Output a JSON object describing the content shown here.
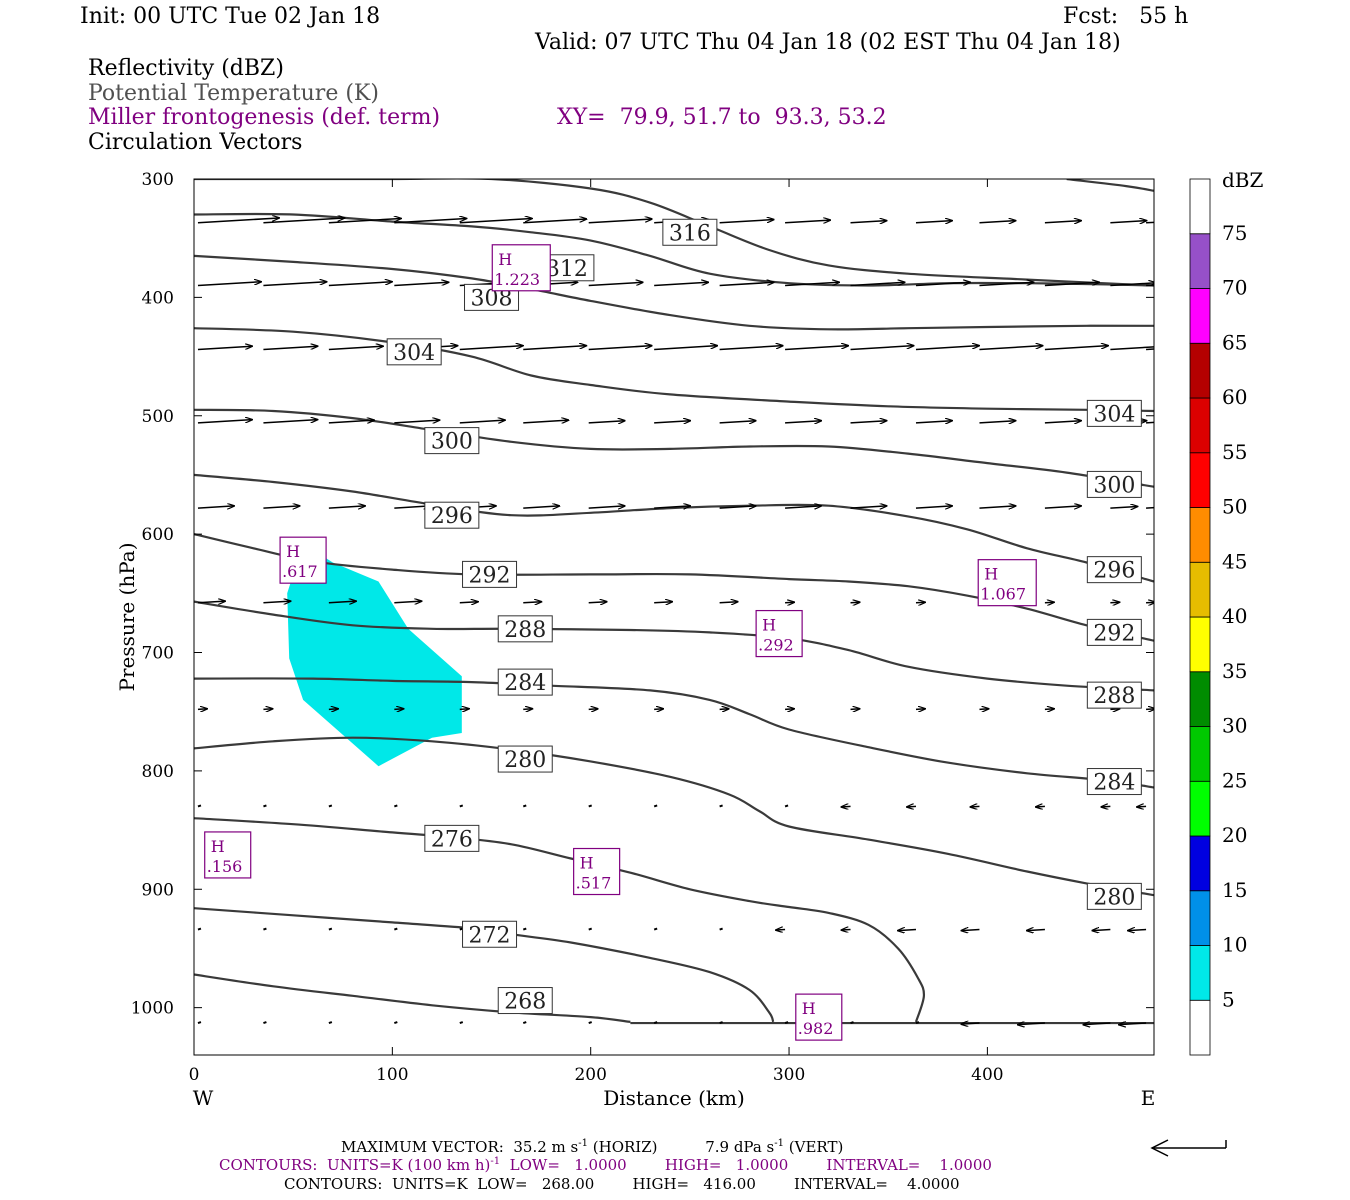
{
  "header": {
    "init": "Init: 00 UTC Tue 02 Jan 18",
    "fcst": "Fcst:   55 h",
    "valid": "Valid: 07 UTC Thu 04 Jan 18 (02 EST Thu 04 Jan 18)",
    "field1": "Reflectivity (dBZ)",
    "field2": "Potential Temperature (K)",
    "field3": "Miller frontogenesis (def. term)",
    "xy": "XY=  79.9, 51.7 to  93.3, 53.2",
    "field4": "Circulation Vectors"
  },
  "footer": {
    "max_vector_label": "MAXIMUM VECTOR:",
    "max_vector_horiz": "35.2 m s",
    "horiz_unit": "(HORIZ)",
    "max_vector_vert": "7.9 dPa s",
    "vert_unit": "(VERT)",
    "contours1": "CONTOURS:  UNITS=K (100 km h)",
    "contours1_rest": "  LOW=   1.0000        HIGH=   1.0000        INTERVAL=    1.0000",
    "contours2": "CONTOURS:  UNITS=K  LOW=   268.00        HIGH=   416.00        INTERVAL=    4.0000",
    "superscript": "-1"
  },
  "colors": {
    "reflectivity_fill": "#00e8e8",
    "theta_line": "#3a3a3a",
    "frontogenesis": "#800080"
  },
  "chart_data": {
    "type": "cross-section",
    "xlabel": "Distance (km)",
    "ylabel": "Pressure (hPa)",
    "xlim": [
      0,
      484
    ],
    "ylim": [
      1040,
      300
    ],
    "x_ticks": [
      0,
      100,
      200,
      300,
      400
    ],
    "y_ticks": [
      300,
      400,
      500,
      600,
      700,
      800,
      900,
      1000
    ],
    "left_end_label": "W",
    "right_end_label": "E",
    "colorbar": {
      "title": "dBZ",
      "levels": [
        5,
        10,
        15,
        20,
        25,
        30,
        35,
        40,
        45,
        50,
        55,
        60,
        65,
        70,
        75
      ],
      "colors": [
        "#ffffff",
        "#00e8e8",
        "#0090e8",
        "#0000e0",
        "#00ff00",
        "#00c800",
        "#008c00",
        "#ffff00",
        "#e6bd00",
        "#ff8c00",
        "#ff0000",
        "#dc0000",
        "#b40000",
        "#ff00ff",
        "#9650c8",
        "#ffffff"
      ]
    },
    "theta_contours": [
      {
        "value": 268,
        "points": [
          [
            0,
            972
          ],
          [
            40,
            982
          ],
          [
            80,
            990
          ],
          [
            120,
            998
          ],
          [
            160,
            1004
          ],
          [
            200,
            1008
          ],
          [
            220,
            1012
          ]
        ]
      },
      {
        "value": 272,
        "points": [
          [
            0,
            916
          ],
          [
            50,
            922
          ],
          [
            100,
            928
          ],
          [
            140,
            933
          ],
          [
            160,
            938
          ],
          [
            190,
            945
          ],
          [
            230,
            958
          ],
          [
            260,
            970
          ],
          [
            280,
            985
          ],
          [
            290,
            1004
          ],
          [
            292,
            1012
          ]
        ]
      },
      {
        "value": 276,
        "points": [
          [
            0,
            840
          ],
          [
            50,
            845
          ],
          [
            100,
            852
          ],
          [
            130,
            856
          ],
          [
            160,
            862
          ],
          [
            190,
            874
          ],
          [
            220,
            886
          ],
          [
            250,
            900
          ],
          [
            280,
            910
          ],
          [
            300,
            915
          ],
          [
            320,
            920
          ],
          [
            340,
            930
          ],
          [
            355,
            950
          ],
          [
            365,
            975
          ],
          [
            368,
            990
          ],
          [
            364,
            1012
          ]
        ]
      },
      {
        "value": 280,
        "points": [
          [
            0,
            781
          ],
          [
            40,
            775
          ],
          [
            80,
            772
          ],
          [
            120,
            775
          ],
          [
            160,
            782
          ],
          [
            200,
            792
          ],
          [
            240,
            805
          ],
          [
            270,
            820
          ],
          [
            285,
            834
          ],
          [
            300,
            847
          ],
          [
            340,
            858
          ],
          [
            380,
            870
          ],
          [
            420,
            885
          ],
          [
            450,
            895
          ],
          [
            484,
            905
          ]
        ]
      },
      {
        "value": 284,
        "points": [
          [
            0,
            722
          ],
          [
            60,
            722
          ],
          [
            100,
            724
          ],
          [
            140,
            725
          ],
          [
            180,
            728
          ],
          [
            230,
            732
          ],
          [
            260,
            740
          ],
          [
            280,
            752
          ],
          [
            300,
            765
          ],
          [
            340,
            780
          ],
          [
            380,
            793
          ],
          [
            420,
            802
          ],
          [
            460,
            808
          ],
          [
            484,
            814
          ]
        ]
      },
      {
        "value": 288,
        "points": [
          [
            0,
            657
          ],
          [
            40,
            668
          ],
          [
            80,
            677
          ],
          [
            120,
            680
          ],
          [
            160,
            680
          ],
          [
            220,
            681
          ],
          [
            260,
            683
          ],
          [
            300,
            688
          ],
          [
            330,
            698
          ],
          [
            360,
            712
          ],
          [
            400,
            722
          ],
          [
            440,
            728
          ],
          [
            484,
            732
          ]
        ]
      },
      {
        "value": 292,
        "points": [
          [
            0,
            600
          ],
          [
            30,
            612
          ],
          [
            60,
            623
          ],
          [
            100,
            630
          ],
          [
            140,
            634
          ],
          [
            200,
            634
          ],
          [
            250,
            634
          ],
          [
            300,
            638
          ],
          [
            330,
            640
          ],
          [
            360,
            644
          ],
          [
            390,
            652
          ],
          [
            420,
            663
          ],
          [
            450,
            677
          ],
          [
            484,
            690
          ]
        ]
      },
      {
        "value": 296,
        "points": [
          [
            0,
            550
          ],
          [
            40,
            556
          ],
          [
            80,
            564
          ],
          [
            120,
            575
          ],
          [
            160,
            584
          ],
          [
            200,
            582
          ],
          [
            240,
            578
          ],
          [
            280,
            576
          ],
          [
            320,
            576
          ],
          [
            360,
            585
          ],
          [
            390,
            596
          ],
          [
            420,
            612
          ],
          [
            450,
            624
          ],
          [
            484,
            640
          ]
        ]
      },
      {
        "value": 300,
        "points": [
          [
            0,
            495
          ],
          [
            40,
            496
          ],
          [
            80,
            502
          ],
          [
            120,
            512
          ],
          [
            160,
            522
          ],
          [
            200,
            528
          ],
          [
            240,
            528
          ],
          [
            280,
            526
          ],
          [
            320,
            526
          ],
          [
            360,
            532
          ],
          [
            400,
            540
          ],
          [
            440,
            548
          ],
          [
            484,
            560
          ]
        ]
      },
      {
        "value": 304,
        "points": [
          [
            0,
            426
          ],
          [
            50,
            429
          ],
          [
            100,
            438
          ],
          [
            140,
            450
          ],
          [
            170,
            466
          ],
          [
            200,
            474
          ],
          [
            240,
            482
          ],
          [
            300,
            488
          ],
          [
            350,
            492
          ],
          [
            400,
            494
          ],
          [
            450,
            495
          ],
          [
            484,
            496
          ]
        ]
      },
      {
        "value": 308,
        "points": [
          [
            0,
            365
          ],
          [
            50,
            370
          ],
          [
            100,
            376
          ],
          [
            140,
            384
          ],
          [
            170,
            393
          ],
          [
            200,
            403
          ],
          [
            240,
            415
          ],
          [
            280,
            424
          ],
          [
            320,
            427
          ],
          [
            360,
            426
          ],
          [
            400,
            425
          ],
          [
            450,
            424
          ],
          [
            484,
            424
          ]
        ]
      },
      {
        "value": 312,
        "points": [
          [
            0,
            330
          ],
          [
            50,
            330
          ],
          [
            100,
            336
          ],
          [
            140,
            340
          ],
          [
            170,
            345
          ],
          [
            200,
            352
          ],
          [
            230,
            365
          ],
          [
            260,
            380
          ],
          [
            300,
            388
          ],
          [
            340,
            390
          ],
          [
            380,
            388
          ],
          [
            420,
            388
          ],
          [
            460,
            389
          ],
          [
            484,
            390
          ]
        ]
      },
      {
        "value": 316,
        "points": [
          [
            0,
            300
          ],
          [
            50,
            300
          ],
          [
            100,
            300
          ],
          [
            150,
            300
          ],
          [
            200,
            308
          ],
          [
            230,
            320
          ],
          [
            260,
            340
          ],
          [
            290,
            360
          ],
          [
            320,
            373
          ],
          [
            360,
            380
          ],
          [
            420,
            385
          ],
          [
            484,
            390
          ]
        ]
      },
      {
        "value": 320,
        "points": [
          [
            440,
            300
          ],
          [
            470,
            306
          ],
          [
            484,
            310
          ]
        ]
      }
    ],
    "theta_labels": [
      {
        "text": "316",
        "x": 250,
        "p": 345
      },
      {
        "text": "312",
        "x": 188,
        "p": 375
      },
      {
        "text": "308",
        "x": 150,
        "p": 400
      },
      {
        "text": "304",
        "x": 111,
        "p": 446
      },
      {
        "text": "300",
        "x": 130,
        "p": 521
      },
      {
        "text": "296",
        "x": 130,
        "p": 584
      },
      {
        "text": "292",
        "x": 149,
        "p": 634
      },
      {
        "text": "288",
        "x": 167,
        "p": 680
      },
      {
        "text": "284",
        "x": 167,
        "p": 725
      },
      {
        "text": "280",
        "x": 167,
        "p": 790
      },
      {
        "text": "276",
        "x": 130,
        "p": 857
      },
      {
        "text": "272",
        "x": 149,
        "p": 938
      },
      {
        "text": "268",
        "x": 167,
        "p": 994
      },
      {
        "text": "304",
        "x": 464,
        "p": 498
      },
      {
        "text": "300",
        "x": 464,
        "p": 558
      },
      {
        "text": "296",
        "x": 464,
        "p": 630
      },
      {
        "text": "292",
        "x": 464,
        "p": 683
      },
      {
        "text": "288",
        "x": 464,
        "p": 736
      },
      {
        "text": "284",
        "x": 464,
        "p": 809
      },
      {
        "text": "280",
        "x": 464,
        "p": 906
      }
    ],
    "reflectivity_region": {
      "dbz": 5,
      "points": [
        [
          55,
          608
        ],
        [
          70,
          624
        ],
        [
          93,
          640
        ],
        [
          108,
          680
        ],
        [
          135,
          720
        ],
        [
          135,
          768
        ],
        [
          120,
          772
        ],
        [
          93,
          796
        ],
        [
          55,
          740
        ],
        [
          48,
          705
        ],
        [
          47,
          650
        ]
      ]
    },
    "frontogenesis_maxima": [
      {
        "symbol": "H",
        "value": "1.223",
        "x": 165,
        "p": 375
      },
      {
        "symbol": "H",
        "value": ".617",
        "x": 55,
        "p": 622
      },
      {
        "symbol": "H",
        "value": "1.067",
        "x": 410,
        "p": 641
      },
      {
        "symbol": "H",
        "value": ".292",
        "x": 295,
        "p": 684
      },
      {
        "symbol": "H",
        "value": ".156",
        "x": 17,
        "p": 871
      },
      {
        "symbol": "H",
        "value": ".517",
        "x": 203,
        "p": 885
      },
      {
        "symbol": "H",
        "value": ".982",
        "x": 315,
        "p": 1008
      }
    ],
    "vectors": [
      {
        "p": 337,
        "u": [
          9,
          9,
          8,
          8,
          8,
          7,
          7,
          6,
          6,
          5,
          4,
          4,
          4,
          4,
          4,
          5
        ]
      },
      {
        "p": 390,
        "u": [
          7,
          7,
          7,
          6,
          6,
          6,
          6,
          6,
          6,
          6,
          6,
          6,
          6,
          6,
          5,
          5
        ]
      },
      {
        "p": 444,
        "u": [
          6,
          6,
          6,
          7,
          7,
          7,
          7,
          7,
          7,
          7,
          7,
          7,
          7,
          7,
          7,
          7
        ]
      },
      {
        "p": 506,
        "u": [
          6,
          6,
          5,
          5,
          5,
          5,
          4,
          4,
          4,
          4,
          4,
          4,
          4,
          4,
          4,
          4
        ]
      },
      {
        "p": 578,
        "u": [
          4,
          4,
          4,
          4,
          4,
          4,
          4,
          4,
          4,
          4,
          4,
          4,
          4,
          4,
          3,
          3
        ]
      },
      {
        "p": 658,
        "u": [
          3,
          3,
          3,
          3,
          2,
          2,
          2,
          2,
          2,
          1,
          1,
          1,
          1,
          1,
          1,
          1
        ]
      },
      {
        "p": 748,
        "u": [
          1,
          1,
          1,
          1,
          1,
          1,
          1,
          1,
          1,
          1,
          1,
          1,
          1,
          1,
          1,
          1
        ]
      },
      {
        "p": 830,
        "u": [
          0,
          0,
          0,
          0,
          0,
          0,
          0,
          0,
          0,
          0,
          -1,
          -1,
          -1,
          -1,
          -1,
          -1
        ]
      },
      {
        "p": 934,
        "u": [
          0,
          0,
          0,
          0,
          0,
          0,
          0,
          0,
          0,
          -1,
          -1,
          -2,
          -2,
          -2,
          -2,
          -2
        ]
      },
      {
        "p": 1013,
        "u": [
          0,
          0,
          0,
          0,
          0,
          0,
          0,
          0,
          0,
          0,
          0,
          0,
          -2,
          -3,
          -3,
          -3
        ]
      }
    ]
  }
}
